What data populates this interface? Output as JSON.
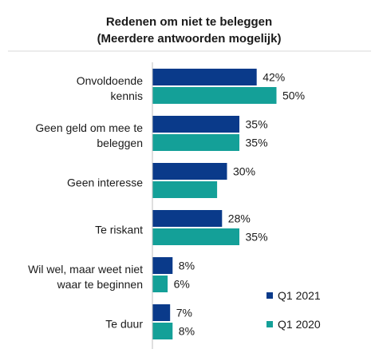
{
  "chart_data": {
    "type": "bar",
    "orientation": "horizontal",
    "title": [
      "Redenen om niet te beleggen",
      "(Meerdere antwoorden mogelijk)"
    ],
    "categories": [
      [
        "Onvoldoende",
        "kennis"
      ],
      [
        "Geen geld om mee te",
        "beleggen"
      ],
      [
        "Geen interesse"
      ],
      [
        "Te riskant"
      ],
      [
        "Wil wel, maar weet niet",
        "waar te beginnen"
      ],
      [
        "Te duur"
      ]
    ],
    "series": [
      {
        "name": "Q1 2021",
        "color": "#0a3a8a",
        "values": [
          42,
          35,
          30,
          28,
          8,
          7
        ]
      },
      {
        "name": "Q1 2020",
        "color": "#14a098",
        "values": [
          50,
          35,
          null,
          35,
          6,
          8
        ]
      }
    ],
    "label_suffix": "%",
    "xlim": [
      0,
      50
    ],
    "grid": false,
    "legend_position": "bottom-right"
  }
}
